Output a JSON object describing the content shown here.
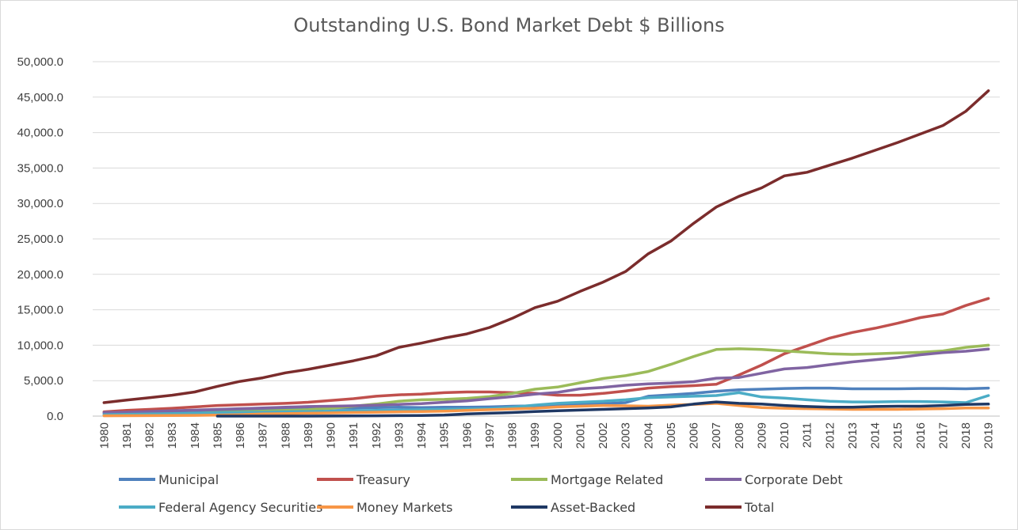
{
  "chart_data": {
    "type": "line",
    "title": "Outstanding U.S. Bond Market Debt $ Billions",
    "ylim": [
      0,
      50000
    ],
    "yticks": [
      "0.0",
      "5,000.0",
      "10,000.0",
      "15,000.0",
      "20,000.0",
      "25,000.0",
      "30,000.0",
      "35,000.0",
      "40,000.0",
      "45,000.0",
      "50,000.0"
    ],
    "grid": true,
    "legend_position": "bottom",
    "x": [
      "1980",
      "1981",
      "1982",
      "1983",
      "1984",
      "1985",
      "1986",
      "1987",
      "1988",
      "1989",
      "1990",
      "1991",
      "1992",
      "1993",
      "1994",
      "1995",
      "1996",
      "1997",
      "1998",
      "1999",
      "2000",
      "2001",
      "2002",
      "2003",
      "2004",
      "2005",
      "2006",
      "2007",
      "2008",
      "2009",
      "2010",
      "2011",
      "2012",
      "2013",
      "2014",
      "2015",
      "2016",
      "2017",
      "2018",
      "2019"
    ],
    "series": [
      {
        "name": "Municipal",
        "color": "#4f81bd",
        "values": [
          400,
          450,
          500,
          550,
          650,
          800,
          900,
          950,
          1000,
          1050,
          1100,
          1150,
          1200,
          1250,
          1200,
          1250,
          1250,
          1300,
          1400,
          1450,
          1500,
          1600,
          1750,
          1900,
          2800,
          3000,
          3200,
          3500,
          3700,
          3800,
          3900,
          3950,
          3950,
          3850,
          3850,
          3850,
          3900,
          3900,
          3850,
          3950
        ]
      },
      {
        "name": "Treasury",
        "color": "#c0504d",
        "values": [
          600,
          800,
          950,
          1100,
          1300,
          1500,
          1600,
          1700,
          1800,
          1950,
          2200,
          2450,
          2800,
          3000,
          3100,
          3300,
          3400,
          3400,
          3300,
          3200,
          2950,
          2950,
          3200,
          3550,
          3950,
          4150,
          4300,
          4500,
          5800,
          7200,
          8800,
          9900,
          11000,
          11800,
          12400,
          13100,
          13900,
          14400,
          15600,
          16600
        ]
      },
      {
        "name": "Mortgage Related",
        "color": "#9bbb59",
        "values": [
          100,
          150,
          200,
          300,
          400,
          500,
          600,
          700,
          800,
          900,
          1100,
          1400,
          1700,
          2100,
          2300,
          2350,
          2500,
          2750,
          3200,
          3800,
          4100,
          4700,
          5300,
          5700,
          6300,
          7300,
          8400,
          9400,
          9500,
          9400,
          9200,
          9000,
          8800,
          8700,
          8800,
          8900,
          9000,
          9200,
          9700,
          10000
        ]
      },
      {
        "name": "Corporate Debt",
        "color": "#8064a2",
        "values": [
          500,
          550,
          650,
          750,
          850,
          950,
          1050,
          1150,
          1250,
          1350,
          1400,
          1450,
          1550,
          1650,
          1750,
          1950,
          2150,
          2450,
          2750,
          3100,
          3350,
          3850,
          4050,
          4350,
          4550,
          4650,
          4850,
          5350,
          5450,
          6050,
          6650,
          6850,
          7250,
          7650,
          7950,
          8250,
          8650,
          8950,
          9150,
          9450
        ]
      },
      {
        "name": "Federal Agency Securities",
        "color": "#4bacc6",
        "values": [
          200,
          250,
          300,
          350,
          400,
          450,
          500,
          550,
          600,
          650,
          700,
          750,
          800,
          850,
          900,
          950,
          1000,
          1050,
          1250,
          1550,
          1800,
          1950,
          2100,
          2300,
          2600,
          2700,
          2800,
          2900,
          3300,
          2700,
          2550,
          2300,
          2100,
          2000,
          2000,
          2050,
          2050,
          2000,
          1900,
          2900
        ]
      },
      {
        "name": "Money Markets",
        "color": "#f79646",
        "values": [
          50,
          60,
          70,
          80,
          100,
          150,
          200,
          300,
          350,
          400,
          450,
          500,
          550,
          600,
          650,
          700,
          800,
          900,
          1000,
          1100,
          1300,
          1400,
          1500,
          1450,
          1400,
          1550,
          1650,
          1800,
          1500,
          1200,
          1100,
          1050,
          1000,
          950,
          950,
          950,
          1000,
          1050,
          1150,
          1150
        ]
      },
      {
        "name": "Asset-Backed",
        "color": "#1f3864",
        "values": [
          null,
          null,
          null,
          null,
          null,
          0,
          0,
          0,
          0,
          0,
          10,
          20,
          50,
          70,
          90,
          150,
          300,
          400,
          500,
          650,
          750,
          850,
          950,
          1050,
          1150,
          1300,
          1700,
          2000,
          1800,
          1700,
          1500,
          1350,
          1250,
          1250,
          1350,
          1400,
          1400,
          1500,
          1650,
          1700
        ]
      },
      {
        "name": "Total",
        "color": "#7b2c2c",
        "values": [
          1900,
          2250,
          2600,
          2950,
          3400,
          4200,
          4900,
          5400,
          6100,
          6600,
          7200,
          7800,
          8500,
          9700,
          10300,
          11000,
          11600,
          12500,
          13800,
          15300,
          16200,
          17600,
          18900,
          20400,
          22900,
          24700,
          27200,
          29500,
          31000,
          32200,
          33900,
          34400,
          35400,
          36400,
          37500,
          38600,
          39800,
          41000,
          43000,
          45900
        ]
      }
    ]
  }
}
